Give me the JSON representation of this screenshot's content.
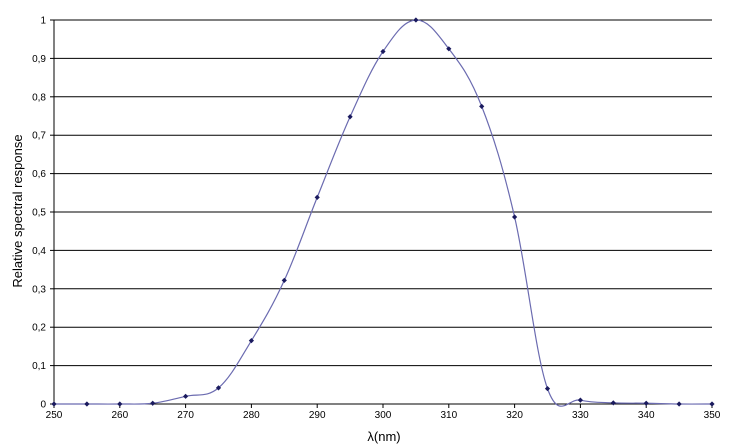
{
  "chart_data": {
    "type": "line",
    "title": "",
    "xlabel": "λ(nm)",
    "ylabel": "Relative spectral response",
    "xlim": [
      250,
      350
    ],
    "ylim": [
      0,
      1
    ],
    "x_ticks": [
      250,
      260,
      270,
      280,
      290,
      300,
      310,
      320,
      330,
      340,
      350
    ],
    "x_tick_labels": [
      "250",
      "260",
      "270",
      "280",
      "290",
      "300",
      "310",
      "320",
      "330",
      "340",
      "350"
    ],
    "y_ticks": [
      0,
      0.1,
      0.2,
      0.3,
      0.4,
      0.5,
      0.6,
      0.7,
      0.8,
      0.9,
      1
    ],
    "y_tick_labels": [
      "0",
      "0,1",
      "0,2",
      "0,3",
      "0,4",
      "0,5",
      "0,6",
      "0,7",
      "0,8",
      "0,9",
      "1"
    ],
    "grid": "horizontal",
    "legend": "none",
    "line_color": "#6b6bb0",
    "marker_color": "#1a1a5e",
    "series": [
      {
        "x": [
          250,
          255,
          260,
          265,
          270,
          275,
          280,
          285,
          290,
          295,
          300,
          305,
          310,
          315,
          320,
          325,
          330,
          335,
          340,
          345,
          350
        ],
        "y": [
          0,
          0,
          0,
          0.002,
          0.02,
          0.042,
          0.165,
          0.322,
          0.538,
          0.748,
          0.918,
          1.0,
          0.925,
          0.775,
          0.487,
          0.04,
          0.01,
          0.003,
          0.002,
          0.0,
          0.0
        ]
      }
    ]
  }
}
